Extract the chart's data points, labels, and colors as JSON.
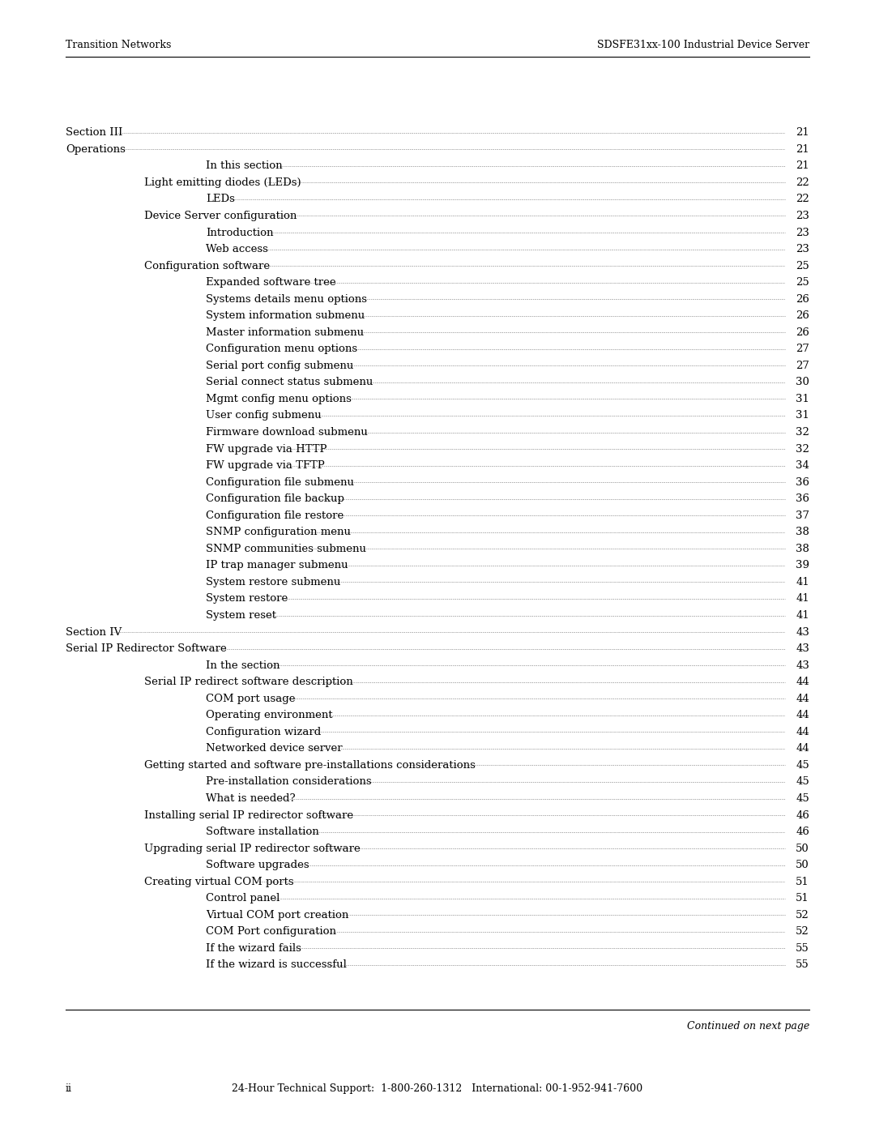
{
  "header_left": "Transition Networks",
  "header_right": "SDSFE31xx-100 Industrial Device Server",
  "footer_center": "24-Hour Technical Support:  1-800-260-1312   International: 00-1-952-941-7600",
  "footer_left": "ii",
  "footer_note": "Continued on next page",
  "background_color": "#ffffff",
  "text_color": "#000000",
  "toc_entries": [
    {
      "text": "Section III",
      "page": "21",
      "indent": 0
    },
    {
      "text": "Operations",
      "page": "21",
      "indent": 0
    },
    {
      "text": "In this section",
      "page": "21",
      "indent": 2
    },
    {
      "text": "Light emitting diodes (LEDs)",
      "page": "22",
      "indent": 1
    },
    {
      "text": "LEDs",
      "page": "22",
      "indent": 2
    },
    {
      "text": "Device Server configuration",
      "page": "23",
      "indent": 1
    },
    {
      "text": "Introduction",
      "page": "23",
      "indent": 2
    },
    {
      "text": "Web access",
      "page": "23",
      "indent": 2
    },
    {
      "text": "Configuration software",
      "page": "25",
      "indent": 1
    },
    {
      "text": "Expanded software tree",
      "page": "25",
      "indent": 2
    },
    {
      "text": "Systems details menu options",
      "page": "26",
      "indent": 2
    },
    {
      "text": "System information submenu",
      "page": "26",
      "indent": 2
    },
    {
      "text": "Master information submenu",
      "page": "26",
      "indent": 2
    },
    {
      "text": "Configuration menu options",
      "page": "27",
      "indent": 2
    },
    {
      "text": "Serial port config submenu",
      "page": "27",
      "indent": 2
    },
    {
      "text": "Serial connect status submenu",
      "page": "30",
      "indent": 2
    },
    {
      "text": "Mgmt config menu options",
      "page": "31",
      "indent": 2
    },
    {
      "text": "User config submenu",
      "page": "31",
      "indent": 2
    },
    {
      "text": "Firmware download submenu",
      "page": "32",
      "indent": 2
    },
    {
      "text": "FW upgrade via HTTP",
      "page": "32",
      "indent": 2
    },
    {
      "text": "FW upgrade via TFTP",
      "page": "34",
      "indent": 2
    },
    {
      "text": "Configuration file submenu",
      "page": "36",
      "indent": 2
    },
    {
      "text": "Configuration file backup",
      "page": "36",
      "indent": 2
    },
    {
      "text": "Configuration file restore",
      "page": "37",
      "indent": 2
    },
    {
      "text": "SNMP configuration menu",
      "page": "38",
      "indent": 2
    },
    {
      "text": "SNMP communities submenu",
      "page": "38",
      "indent": 2
    },
    {
      "text": "IP trap manager submenu",
      "page": "39",
      "indent": 2
    },
    {
      "text": "System restore submenu",
      "page": "41",
      "indent": 2
    },
    {
      "text": "System restore",
      "page": "41",
      "indent": 2
    },
    {
      "text": "System reset",
      "page": "41",
      "indent": 2
    },
    {
      "text": "Section IV",
      "page": "43",
      "indent": 0
    },
    {
      "text": "Serial IP Redirector Software",
      "page": "43",
      "indent": 0
    },
    {
      "text": "In the section",
      "page": "43",
      "indent": 2
    },
    {
      "text": "Serial IP redirect software description",
      "page": "44",
      "indent": 1
    },
    {
      "text": "COM port usage",
      "page": "44",
      "indent": 2
    },
    {
      "text": "Operating environment",
      "page": "44",
      "indent": 2
    },
    {
      "text": "Configuration wizard",
      "page": "44",
      "indent": 2
    },
    {
      "text": "Networked device server",
      "page": "44",
      "indent": 2
    },
    {
      "text": "Getting started and software pre-installations considerations",
      "page": "45",
      "indent": 1
    },
    {
      "text": "Pre-installation considerations",
      "page": "45",
      "indent": 2
    },
    {
      "text": "What is needed?",
      "page": "45",
      "indent": 2
    },
    {
      "text": "Installing serial IP redirector software",
      "page": "46",
      "indent": 1
    },
    {
      "text": "Software installation",
      "page": "46",
      "indent": 2
    },
    {
      "text": "Upgrading serial IP redirector software",
      "page": "50",
      "indent": 1
    },
    {
      "text": "Software upgrades",
      "page": "50",
      "indent": 2
    },
    {
      "text": "Creating virtual COM ports",
      "page": "51",
      "indent": 1
    },
    {
      "text": "Control panel",
      "page": "51",
      "indent": 2
    },
    {
      "text": "Virtual COM port creation",
      "page": "52",
      "indent": 2
    },
    {
      "text": "COM Port configuration",
      "page": "52",
      "indent": 2
    },
    {
      "text": "If the wizard fails",
      "page": "55",
      "indent": 2
    },
    {
      "text": "If the wizard is successful",
      "page": "55",
      "indent": 2
    }
  ],
  "indent_sizes": [
    0.0,
    0.09,
    0.16
  ],
  "font_size_toc": 9.5,
  "font_size_header": 9.0,
  "font_size_footer": 9.0
}
